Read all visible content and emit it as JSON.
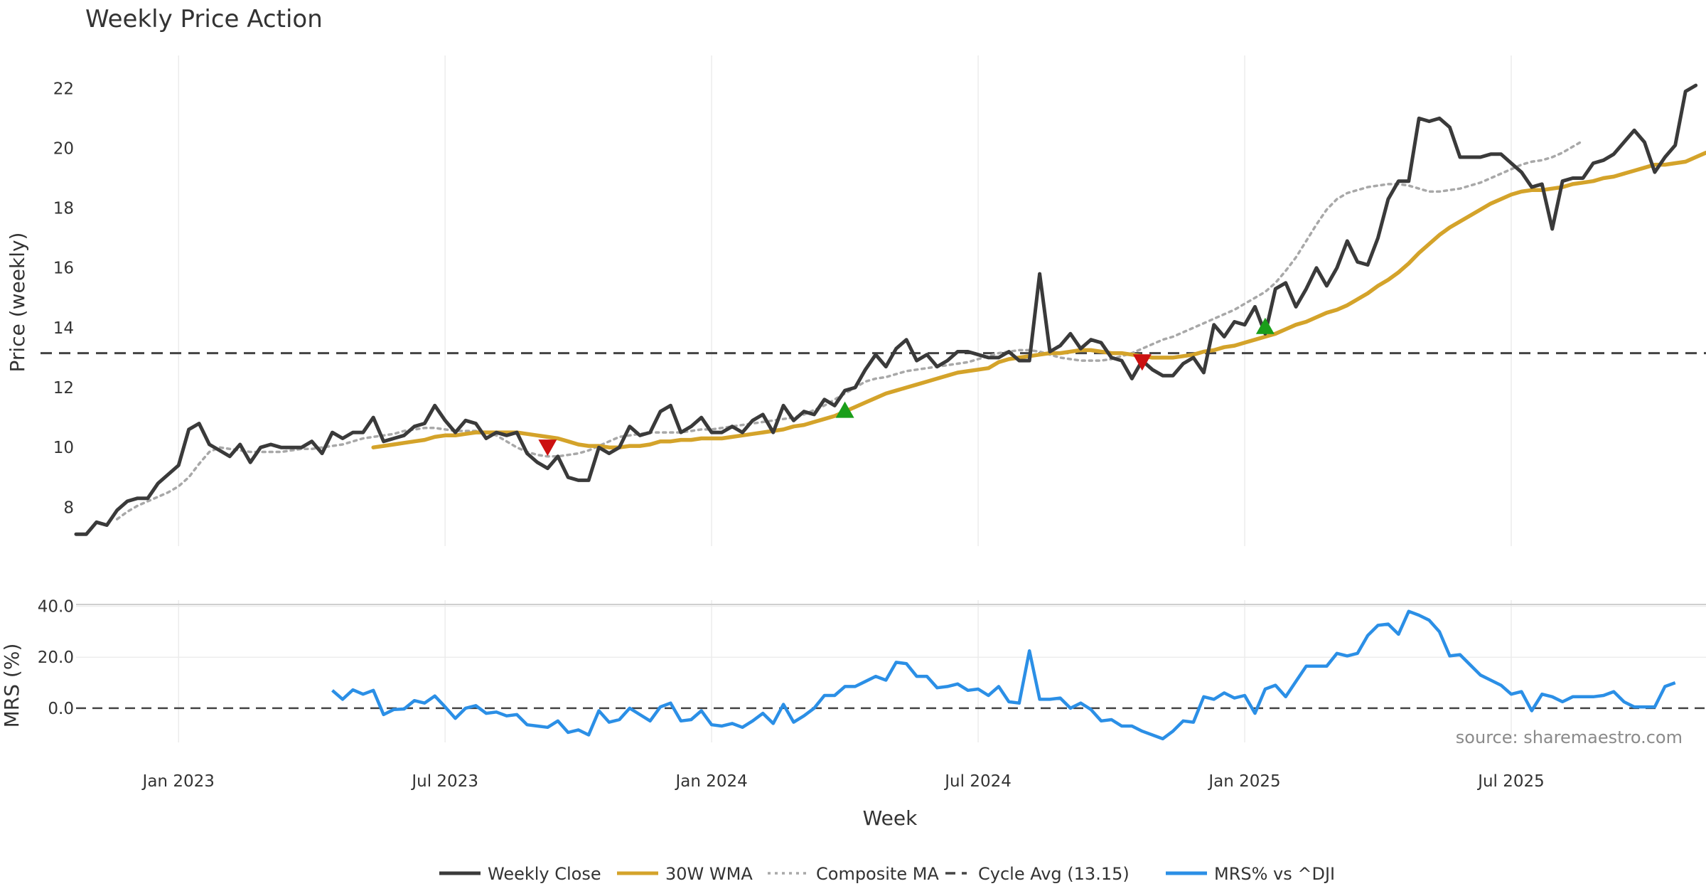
{
  "chart_data": {
    "type": "line",
    "title": "Weekly Price Action",
    "xlabel": "Week",
    "x_ticks": [
      "Jan 2023",
      "Jul 2023",
      "Jan 2024",
      "Jul 2024",
      "Jan 2025",
      "Jul 2025"
    ],
    "x_tick_weeks": [
      10,
      36,
      62,
      88,
      114,
      140
    ],
    "price_panel": {
      "ylabel": "Price (weekly)",
      "ylim": [
        6.7,
        23.1
      ],
      "y_ticks": [
        8,
        10,
        12,
        14,
        16,
        18,
        20,
        22
      ],
      "cycle_avg": 13.15,
      "series": [
        {
          "name": "Weekly Close",
          "color": "#3a3a3a",
          "start_week": 0,
          "values": [
            7.1,
            7.1,
            7.5,
            7.4,
            7.9,
            8.2,
            8.3,
            8.3,
            8.8,
            9.1,
            9.4,
            10.6,
            10.8,
            10.1,
            9.9,
            9.7,
            10.1,
            9.5,
            10.0,
            10.1,
            10.0,
            10.0,
            10.0,
            10.2,
            9.8,
            10.5,
            10.3,
            10.5,
            10.5,
            11.0,
            10.2,
            10.3,
            10.4,
            10.7,
            10.8,
            11.4,
            10.9,
            10.5,
            10.9,
            10.8,
            10.3,
            10.5,
            10.4,
            10.5,
            9.8,
            9.5,
            9.3,
            9.7,
            9.0,
            8.9,
            8.9,
            10.0,
            9.8,
            10.0,
            10.7,
            10.4,
            10.5,
            11.2,
            11.4,
            10.5,
            10.7,
            11.0,
            10.5,
            10.5,
            10.7,
            10.5,
            10.9,
            11.1,
            10.5,
            11.4,
            10.9,
            11.2,
            11.1,
            11.6,
            11.4,
            11.9,
            12.0,
            12.6,
            13.1,
            12.7,
            13.3,
            13.6,
            12.9,
            13.1,
            12.7,
            12.9,
            13.2,
            13.2,
            13.1,
            13.0,
            13.0,
            13.2,
            12.9,
            12.9,
            15.8,
            13.2,
            13.4,
            13.8,
            13.3,
            13.6,
            13.5,
            13.0,
            12.9,
            12.3,
            12.9,
            12.6,
            12.4,
            12.4,
            12.8,
            13.0,
            12.5,
            14.1,
            13.7,
            14.2,
            14.1,
            14.7,
            13.8,
            15.3,
            15.5,
            14.7,
            15.3,
            16.0,
            15.4,
            16.0,
            16.9,
            16.2,
            16.1,
            17.0,
            18.3,
            18.9,
            18.9,
            21.0,
            20.9,
            21.0,
            20.7,
            19.7,
            19.7,
            19.7,
            19.8,
            19.8,
            19.5,
            19.2,
            18.7,
            18.8,
            17.3,
            18.9,
            19.0,
            19.0,
            19.5,
            19.6,
            19.8,
            20.2,
            20.6,
            20.2,
            19.2,
            19.7,
            20.1,
            21.9,
            22.1
          ]
        },
        {
          "name": "30W WMA",
          "color": "#d4a32a",
          "start_week": 29,
          "values": [
            10.0,
            10.05,
            10.1,
            10.15,
            10.2,
            10.25,
            10.35,
            10.4,
            10.4,
            10.45,
            10.5,
            10.5,
            10.5,
            10.5,
            10.5,
            10.45,
            10.4,
            10.35,
            10.3,
            10.2,
            10.1,
            10.05,
            10.05,
            10.0,
            10.0,
            10.05,
            10.05,
            10.1,
            10.2,
            10.2,
            10.25,
            10.25,
            10.3,
            10.3,
            10.3,
            10.35,
            10.4,
            10.45,
            10.5,
            10.55,
            10.6,
            10.7,
            10.75,
            10.85,
            10.95,
            11.05,
            11.2,
            11.35,
            11.5,
            11.65,
            11.8,
            11.9,
            12.0,
            12.1,
            12.2,
            12.3,
            12.4,
            12.5,
            12.55,
            12.6,
            12.65,
            12.85,
            12.95,
            13.0,
            13.05,
            13.1,
            13.15,
            13.15,
            13.2,
            13.25,
            13.25,
            13.2,
            13.15,
            13.15,
            13.1,
            13.05,
            13.0,
            13.0,
            13.0,
            13.05,
            13.1,
            13.2,
            13.25,
            13.35,
            13.4,
            13.5,
            13.6,
            13.7,
            13.8,
            13.95,
            14.1,
            14.2,
            14.35,
            14.5,
            14.6,
            14.75,
            14.95,
            15.15,
            15.4,
            15.6,
            15.85,
            16.15,
            16.5,
            16.8,
            17.1,
            17.35,
            17.55,
            17.75,
            17.95,
            18.15,
            18.3,
            18.45,
            18.55,
            18.6,
            18.6,
            18.65,
            18.7,
            18.8,
            18.85,
            18.9,
            19.0,
            19.05,
            19.15,
            19.25,
            19.35,
            19.45,
            19.45,
            19.5,
            19.55,
            19.7,
            19.85
          ]
        },
        {
          "name": "Composite MA",
          "color": "#a8a8a8",
          "start_week": 4,
          "values": [
            7.6,
            7.85,
            8.05,
            8.2,
            8.35,
            8.5,
            8.7,
            9.0,
            9.45,
            9.85,
            10.0,
            9.95,
            9.9,
            9.85,
            9.85,
            9.85,
            9.85,
            9.9,
            9.95,
            9.95,
            10.0,
            10.05,
            10.1,
            10.2,
            10.3,
            10.35,
            10.4,
            10.45,
            10.55,
            10.6,
            10.65,
            10.65,
            10.6,
            10.55,
            10.55,
            10.55,
            10.5,
            10.4,
            10.2,
            10.0,
            9.85,
            9.75,
            9.7,
            9.7,
            9.75,
            9.8,
            9.9,
            10.05,
            10.2,
            10.35,
            10.4,
            10.45,
            10.5,
            10.5,
            10.5,
            10.5,
            10.55,
            10.6,
            10.6,
            10.65,
            10.7,
            10.75,
            10.8,
            10.85,
            10.9,
            10.95,
            11.0,
            11.1,
            11.25,
            11.4,
            11.6,
            11.8,
            12.0,
            12.2,
            12.3,
            12.35,
            12.45,
            12.55,
            12.6,
            12.65,
            12.7,
            12.75,
            12.8,
            12.85,
            12.95,
            13.05,
            13.15,
            13.2,
            13.25,
            13.25,
            13.2,
            13.1,
            13.0,
            12.95,
            12.9,
            12.9,
            12.9,
            12.95,
            13.05,
            13.15,
            13.3,
            13.45,
            13.6,
            13.7,
            13.85,
            14.0,
            14.15,
            14.3,
            14.45,
            14.6,
            14.8,
            15.0,
            15.2,
            15.5,
            15.9,
            16.35,
            16.9,
            17.45,
            17.95,
            18.3,
            18.5,
            18.6,
            18.7,
            18.75,
            18.8,
            18.8,
            18.75,
            18.65,
            18.55,
            18.55,
            18.6,
            18.65,
            18.75,
            18.85,
            19.0,
            19.15,
            19.3,
            19.45,
            19.55,
            19.6,
            19.7,
            19.85,
            20.05,
            20.25
          ]
        }
      ],
      "sell_signals": [
        {
          "week": 46,
          "price": 10.0
        },
        {
          "week": 104,
          "price": 12.85
        }
      ],
      "buy_signals": [
        {
          "week": 75,
          "price": 11.25
        },
        {
          "week": 116,
          "price": 14.05
        }
      ]
    },
    "mrs_panel": {
      "ylabel": "MRS (%)",
      "ylim": [
        -12.3,
        40.7
      ],
      "y_ticks": [
        0,
        20,
        40
      ],
      "y_tick_labels": [
        "0.0",
        "20.0",
        "40.0"
      ],
      "series": [
        {
          "name": "MRS% vs ^DJI",
          "color": "#2b8fe6",
          "start_week": 25,
          "values": [
            7.0,
            3.5,
            7.2,
            5.5,
            7.0,
            -2.5,
            -0.5,
            -0.3,
            3.0,
            2.0,
            4.8,
            0.5,
            -4.0,
            0.0,
            1.0,
            -2.0,
            -1.5,
            -3.0,
            -2.5,
            -6.5,
            -7.0,
            -7.5,
            -5.0,
            -9.5,
            -8.5,
            -10.5,
            -1.0,
            -5.5,
            -4.5,
            0.0,
            -2.5,
            -5.0,
            0.5,
            2.0,
            -5.0,
            -4.5,
            -1.0,
            -6.5,
            -7.0,
            -6.0,
            -7.5,
            -5.0,
            -2.0,
            -6.0,
            1.5,
            -5.5,
            -3.0,
            0.0,
            5.0,
            5.0,
            8.5,
            8.5,
            10.5,
            12.5,
            11.0,
            18.0,
            17.5,
            12.5,
            12.5,
            8.0,
            8.5,
            9.5,
            7.0,
            7.5,
            5.0,
            8.5,
            2.5,
            2.0,
            22.5,
            3.5,
            3.5,
            4.0,
            0.0,
            2.0,
            -0.5,
            -5.0,
            -4.5,
            -7.0,
            -7.0,
            -9.0,
            -10.5,
            -12.0,
            -9.0,
            -5.0,
            -5.5,
            4.5,
            3.5,
            6.0,
            4.0,
            5.0,
            -2.0,
            7.5,
            9.0,
            4.5,
            10.5,
            16.5,
            16.5,
            16.5,
            21.5,
            20.5,
            21.5,
            28.5,
            32.5,
            33.0,
            29.0,
            38.0,
            36.5,
            34.5,
            30.0,
            20.5,
            21.0,
            17.0,
            13.0,
            11.0,
            9.0,
            5.5,
            6.5,
            -1.0,
            5.5,
            4.5,
            2.5,
            4.5,
            4.5,
            4.5,
            5.0,
            6.5,
            2.5,
            0.5,
            0.5,
            0.5,
            8.5,
            10.0
          ]
        }
      ],
      "zero_line": 0
    },
    "legend": [
      {
        "label": "Weekly Close",
        "color": "#3a3a3a",
        "style": "solid"
      },
      {
        "label": "30W WMA",
        "color": "#d4a32a",
        "style": "solid"
      },
      {
        "label": "Composite MA",
        "color": "#a8a8a8",
        "style": "dotted"
      },
      {
        "label": "Cycle Avg (13.15)",
        "color": "#444444",
        "style": "dashed"
      },
      {
        "label": "MRS% vs ^DJI",
        "color": "#2b8fe6",
        "style": "solid"
      }
    ],
    "source": "source: sharemaestro.com"
  }
}
